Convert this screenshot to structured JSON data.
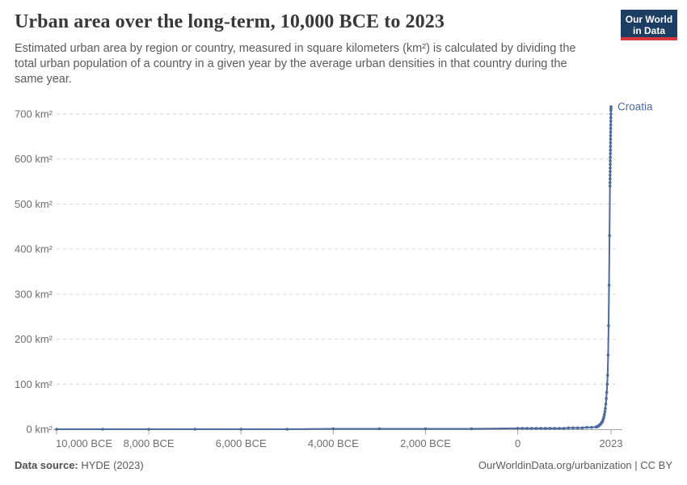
{
  "header": {
    "title": "Urban area over the long-term, 10,000 BCE to 2023",
    "subtitle": "Estimated urban area by region or country, measured in square kilometers (km²) is calculated by dividing the total urban population of a country in a given year by the average urban densities in that country during the same year."
  },
  "logo": {
    "line1": "Our World",
    "line2": "in Data",
    "bg_color": "#1d3d63",
    "accent_color": "#d7383d"
  },
  "footer": {
    "source_label": "Data source:",
    "source_value": " HYDE (2023)",
    "right_text": "OurWorldinData.org/urbanization | CC BY"
  },
  "chart_data": {
    "type": "line",
    "title": "Urban area over the long-term, 10,000 BCE to 2023",
    "xlim": [
      -10000,
      2023
    ],
    "ylim": [
      0,
      700
    ],
    "grid": "horizontal-dashed",
    "colors": {
      "line": "#4c6a9c",
      "grid": "#d6d6d6",
      "axis": "#a5a5a5",
      "tick_label": "#6e6e6e"
    },
    "x_ticks": [
      {
        "value": -10000,
        "label": "10,000 BCE"
      },
      {
        "value": -8000,
        "label": "8,000 BCE"
      },
      {
        "value": -6000,
        "label": "6,000 BCE"
      },
      {
        "value": -4000,
        "label": "4,000 BCE"
      },
      {
        "value": -2000,
        "label": "2,000 BCE"
      },
      {
        "value": 0,
        "label": "0"
      },
      {
        "value": 2023,
        "label": "2023"
      }
    ],
    "y_ticks": [
      {
        "value": 0,
        "label": "0 km²"
      },
      {
        "value": 100,
        "label": "100 km²"
      },
      {
        "value": 200,
        "label": "200 km²"
      },
      {
        "value": 300,
        "label": "300 km²"
      },
      {
        "value": 400,
        "label": "400 km²"
      },
      {
        "value": 500,
        "label": "500 km²"
      },
      {
        "value": 600,
        "label": "600 km²"
      },
      {
        "value": 700,
        "label": "700 km²"
      }
    ],
    "series": [
      {
        "name": "Croatia",
        "color": "#4c6a9c",
        "points": [
          [
            -10000,
            0
          ],
          [
            -9000,
            0
          ],
          [
            -8000,
            0
          ],
          [
            -7000,
            0
          ],
          [
            -6000,
            0
          ],
          [
            -5000,
            0
          ],
          [
            -4000,
            1
          ],
          [
            -3000,
            1
          ],
          [
            -2000,
            1
          ],
          [
            -1000,
            1
          ],
          [
            0,
            2
          ],
          [
            100,
            2
          ],
          [
            200,
            2
          ],
          [
            300,
            2
          ],
          [
            400,
            2
          ],
          [
            500,
            2
          ],
          [
            600,
            2
          ],
          [
            700,
            2
          ],
          [
            800,
            2
          ],
          [
            900,
            2
          ],
          [
            1000,
            2
          ],
          [
            1100,
            3
          ],
          [
            1200,
            3
          ],
          [
            1300,
            3
          ],
          [
            1400,
            3
          ],
          [
            1500,
            4
          ],
          [
            1600,
            4
          ],
          [
            1700,
            5
          ],
          [
            1710,
            5
          ],
          [
            1720,
            6
          ],
          [
            1730,
            6
          ],
          [
            1740,
            7
          ],
          [
            1750,
            7
          ],
          [
            1760,
            8
          ],
          [
            1770,
            9
          ],
          [
            1780,
            10
          ],
          [
            1790,
            11
          ],
          [
            1800,
            12
          ],
          [
            1810,
            13
          ],
          [
            1820,
            15
          ],
          [
            1830,
            16
          ],
          [
            1840,
            18
          ],
          [
            1850,
            21
          ],
          [
            1860,
            24
          ],
          [
            1870,
            28
          ],
          [
            1880,
            33
          ],
          [
            1890,
            39
          ],
          [
            1900,
            46
          ],
          [
            1910,
            56
          ],
          [
            1920,
            68
          ],
          [
            1930,
            82
          ],
          [
            1940,
            100
          ],
          [
            1950,
            120
          ],
          [
            1960,
            165
          ],
          [
            1970,
            230
          ],
          [
            1980,
            320
          ],
          [
            1990,
            430
          ],
          [
            2000,
            540
          ],
          [
            2001,
            548
          ],
          [
            2002,
            556
          ],
          [
            2003,
            564
          ],
          [
            2004,
            572
          ],
          [
            2005,
            580
          ],
          [
            2006,
            588
          ],
          [
            2007,
            596
          ],
          [
            2008,
            604
          ],
          [
            2009,
            612
          ],
          [
            2010,
            620
          ],
          [
            2011,
            628
          ],
          [
            2012,
            636
          ],
          [
            2013,
            644
          ],
          [
            2014,
            652
          ],
          [
            2015,
            660
          ],
          [
            2016,
            668
          ],
          [
            2017,
            676
          ],
          [
            2018,
            684
          ],
          [
            2019,
            692
          ],
          [
            2020,
            700
          ],
          [
            2021,
            708
          ],
          [
            2022,
            712
          ],
          [
            2023,
            716
          ]
        ]
      }
    ]
  }
}
